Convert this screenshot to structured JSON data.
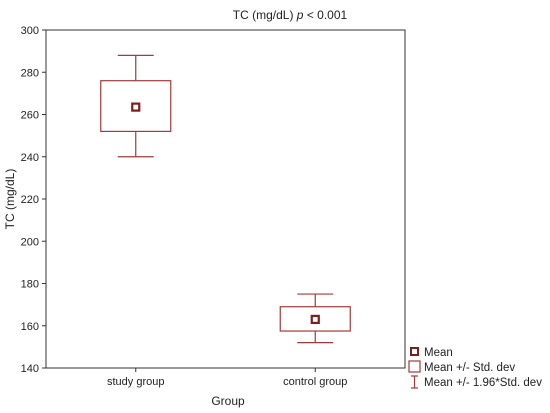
{
  "chart_data": {
    "type": "box",
    "title_main": "TC (mg/dL) ",
    "title_p": "p",
    "title_rest": " < 0.001",
    "xlabel": "Group",
    "ylabel": "TC (mg/dL)",
    "ylim": [
      140,
      300
    ],
    "yticks": [
      140,
      160,
      180,
      200,
      220,
      240,
      260,
      280,
      300
    ],
    "grid": false,
    "legend_position": "bottom-right",
    "color": "#a33a3a",
    "groups": [
      {
        "category": "study group",
        "mean": 263.5,
        "sd_low": 252,
        "sd_high": 276,
        "ci_low": 240,
        "ci_high": 288
      },
      {
        "category": "control group",
        "mean": 163,
        "sd_low": 157.5,
        "sd_high": 169,
        "ci_low": 152,
        "ci_high": 175
      }
    ],
    "legend": [
      {
        "label": "Mean",
        "marker": "mean"
      },
      {
        "label": "Mean +/- Std. dev",
        "marker": "box"
      },
      {
        "label": "Mean +/- 1.96*Std. dev",
        "marker": "whisker"
      }
    ]
  }
}
